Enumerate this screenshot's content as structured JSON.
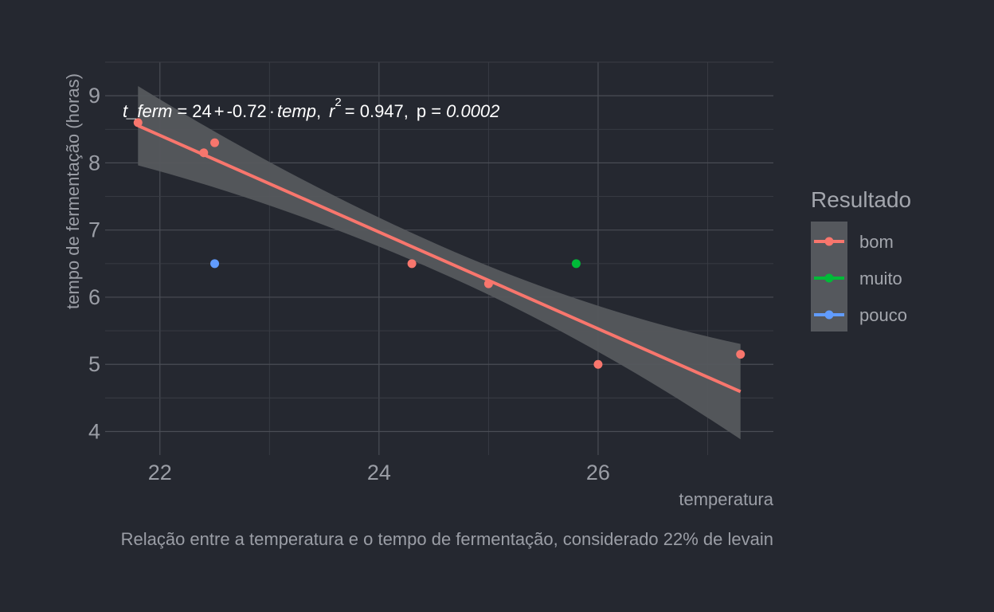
{
  "chart_data": {
    "type": "scatter",
    "xlabel": "temperatura",
    "ylabel": "tempo de fermentação (horas)",
    "caption": "Relação entre a temperatura e o tempo de fermentação, considerado 22% de levain",
    "xlim": [
      21.5,
      27.6
    ],
    "ylim": [
      3.65,
      9.5
    ],
    "x_ticks": [
      22,
      24,
      26
    ],
    "y_ticks": [
      4,
      5,
      6,
      7,
      8,
      9
    ],
    "grid": true,
    "legend": {
      "title": "Resultado",
      "position": "right",
      "entries": [
        {
          "name": "bom",
          "color": "#f8766d"
        },
        {
          "name": "muito",
          "color": "#00ba38"
        },
        {
          "name": "pouco",
          "color": "#619cff"
        }
      ]
    },
    "series": [
      {
        "name": "bom",
        "color": "#f8766d",
        "points": [
          [
            21.8,
            8.6
          ],
          [
            22.4,
            8.15
          ],
          [
            22.5,
            8.3
          ],
          [
            24.3,
            6.5
          ],
          [
            25.0,
            6.2
          ],
          [
            26.0,
            5.0
          ],
          [
            27.3,
            5.15
          ]
        ]
      },
      {
        "name": "muito",
        "color": "#00ba38",
        "points": [
          [
            25.8,
            6.5
          ]
        ]
      },
      {
        "name": "pouco",
        "color": "#619cff",
        "points": [
          [
            22.5,
            6.5
          ]
        ]
      }
    ],
    "regression": {
      "x_range": [
        21.8,
        27.3
      ],
      "intercept": 24.25,
      "slope": -0.72,
      "ci_at_start": [
        7.98,
        9.16
      ],
      "ci_at_end": [
        3.92,
        5.34
      ],
      "line_color": "#f8766d",
      "band_color": "#55585d"
    },
    "annotation": {
      "lhs": "t_ferm",
      "eq_sign": "=",
      "intercept": "24",
      "plus": "+",
      "slope": "-0.72",
      "dot": "·",
      "var": "temp",
      "comma1": ",",
      "r2_label": "r",
      "r2_exp": "2",
      "r2_value": "= 0.947",
      "comma2": ",",
      "p_label": "p =",
      "p_value": "0.0002"
    }
  }
}
